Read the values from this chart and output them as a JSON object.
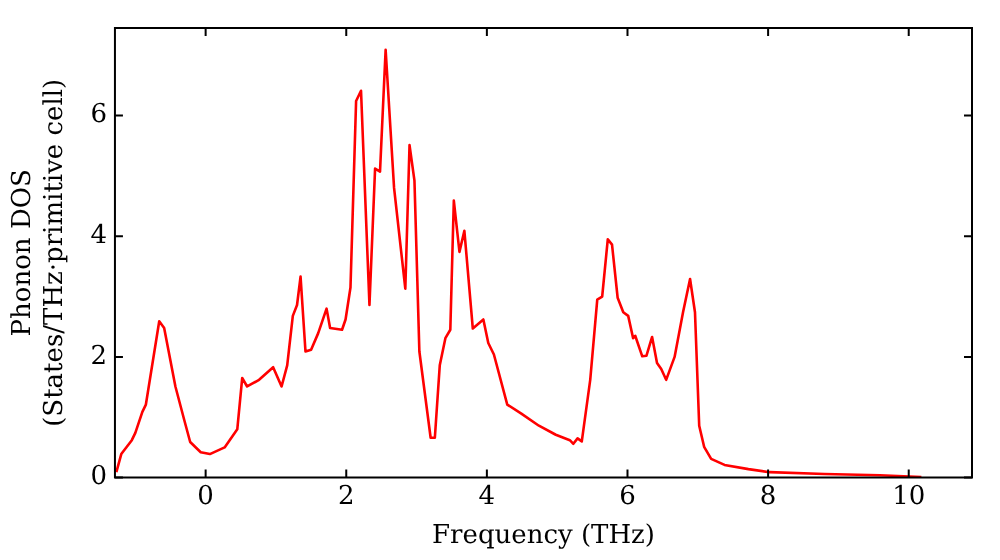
{
  "chart_data": {
    "type": "line",
    "xlabel": "Frequency (THz)",
    "ylabel": "Phonon DOS\n(States/THz·primitive cell)",
    "xlim": [
      -1.29,
      10.9
    ],
    "ylim": [
      0,
      7.45
    ],
    "xticks": [
      0,
      2,
      4,
      6,
      8,
      10
    ],
    "yticks": [
      0,
      2,
      4,
      6
    ],
    "grid": false,
    "legend": false,
    "marker": "none",
    "line_style": "solid",
    "series": [
      {
        "color": "#ff0000",
        "x": [
          -1.27,
          -1.2,
          -1.05,
          -1.0,
          -0.9,
          -0.85,
          -0.66,
          -0.59,
          -0.43,
          -0.31,
          -0.22,
          -0.07,
          0.06,
          0.27,
          0.45,
          0.52,
          0.59,
          0.76,
          0.96,
          1.08,
          1.16,
          1.24,
          1.3,
          1.35,
          1.42,
          1.5,
          1.6,
          1.72,
          1.77,
          1.94,
          1.99,
          2.06,
          2.14,
          2.21,
          2.33,
          2.41,
          2.48,
          2.56,
          2.68,
          2.84,
          2.9,
          2.97,
          3.04,
          3.2,
          3.26,
          3.33,
          3.41,
          3.48,
          3.53,
          3.61,
          3.68,
          3.8,
          3.95,
          4.02,
          4.1,
          4.29,
          4.49,
          4.74,
          4.98,
          5.18,
          5.23,
          5.29,
          5.35,
          5.47,
          5.57,
          5.64,
          5.72,
          5.78,
          5.86,
          5.94,
          6.01,
          6.08,
          6.11,
          6.21,
          6.27,
          6.35,
          6.42,
          6.48,
          6.55,
          6.67,
          6.79,
          6.89,
          6.96,
          7.02,
          7.09,
          7.19,
          7.38,
          7.72,
          8.02,
          8.8,
          9.59,
          10.18
        ],
        "values": [
          0.09,
          0.39,
          0.62,
          0.74,
          1.09,
          1.21,
          2.59,
          2.48,
          1.51,
          0.98,
          0.59,
          0.42,
          0.39,
          0.5,
          0.8,
          1.65,
          1.51,
          1.62,
          1.83,
          1.51,
          1.86,
          2.68,
          2.86,
          3.33,
          2.09,
          2.12,
          2.39,
          2.8,
          2.48,
          2.45,
          2.62,
          3.15,
          6.24,
          6.41,
          2.86,
          5.12,
          5.07,
          7.09,
          4.8,
          3.13,
          5.51,
          4.92,
          2.09,
          0.66,
          0.66,
          1.86,
          2.31,
          2.45,
          4.59,
          3.74,
          4.09,
          2.47,
          2.62,
          2.23,
          2.04,
          1.21,
          1.06,
          0.86,
          0.71,
          0.62,
          0.56,
          0.65,
          0.6,
          1.62,
          2.95,
          3.0,
          3.95,
          3.86,
          2.98,
          2.74,
          2.68,
          2.31,
          2.35,
          2.01,
          2.02,
          2.33,
          1.9,
          1.8,
          1.62,
          2.0,
          2.74,
          3.29,
          2.74,
          0.86,
          0.51,
          0.31,
          0.21,
          0.14,
          0.09,
          0.06,
          0.04,
          0.01
        ]
      }
    ]
  }
}
